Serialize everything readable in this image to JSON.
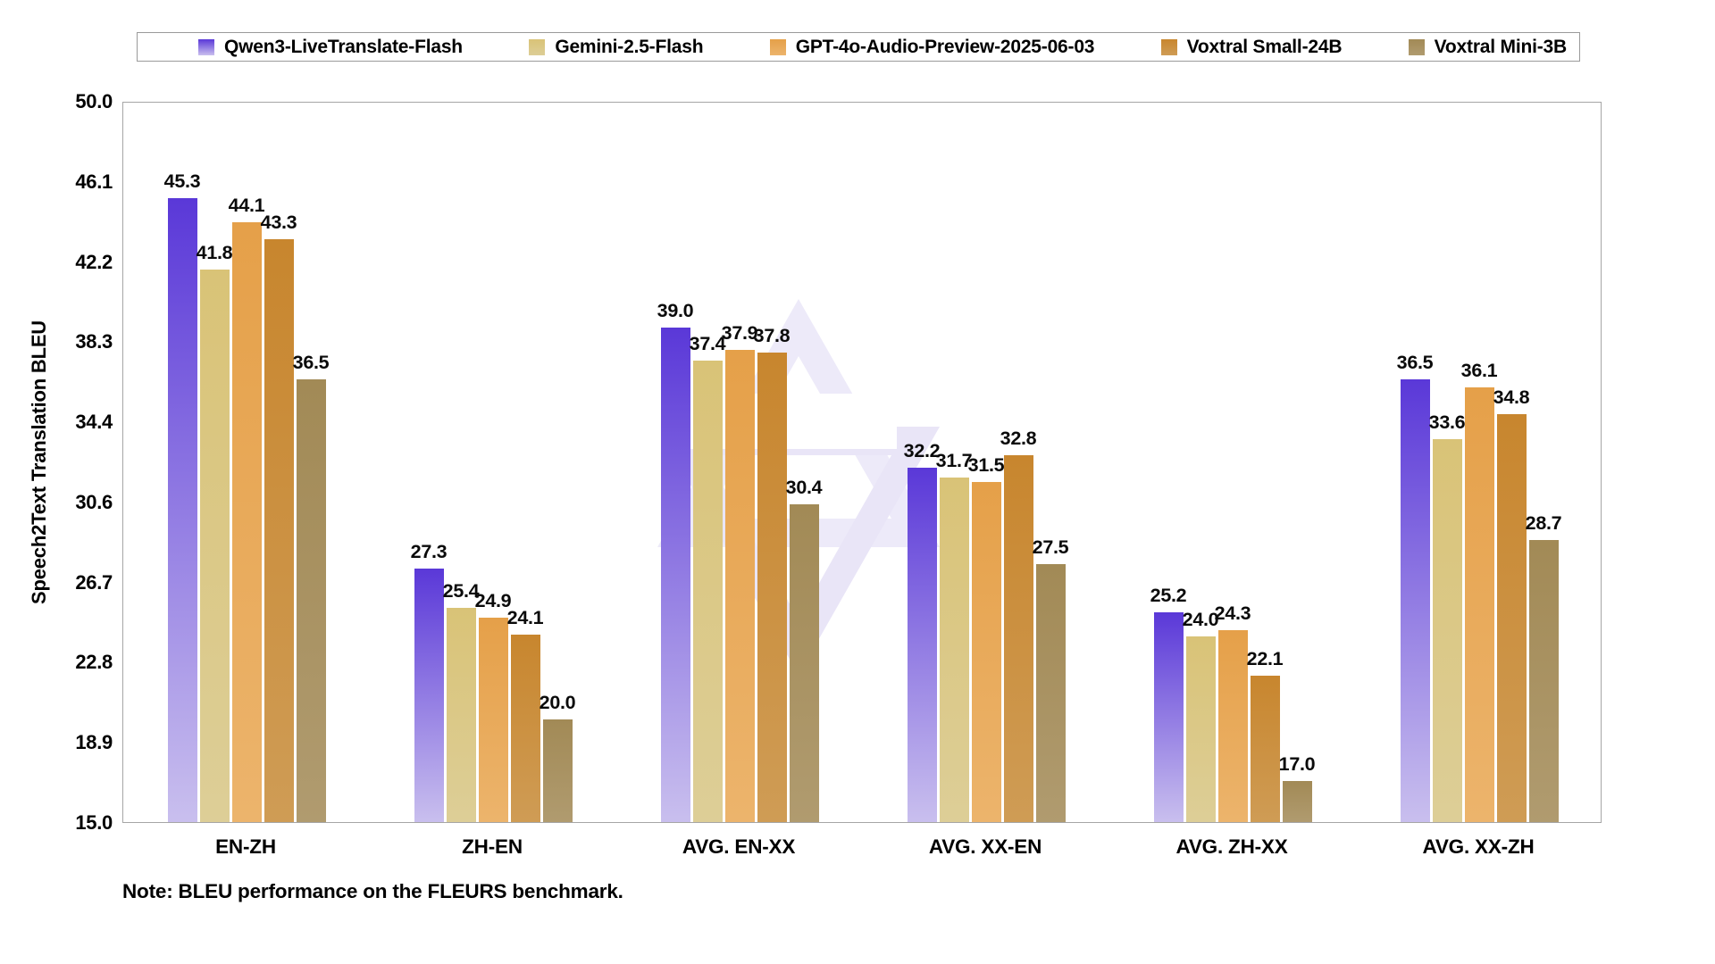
{
  "note": "Note: BLEU performance on the FLEURS benchmark.",
  "watermark": {
    "icon": "qwen-logo",
    "fill": "#edeaf9",
    "fill2": "#e9e5f7"
  },
  "axis_color": "#a6a6a6",
  "chart_data": {
    "type": "bar",
    "title": "",
    "xlabel": "",
    "ylabel": "Speech2Text Translation BLEU",
    "ylim": [
      15.0,
      50.0
    ],
    "yticks": [
      50.0,
      46.1,
      42.2,
      38.3,
      34.4,
      30.6,
      26.7,
      22.8,
      18.9,
      15.0
    ],
    "grid": false,
    "legend_position": "top",
    "value_labels": true,
    "categories": [
      "EN-ZH",
      "ZH-EN",
      "AVG. EN-XX",
      "AVG. XX-EN",
      "AVG. ZH-XX",
      "AVG. XX-ZH"
    ],
    "series": [
      {
        "name": "Qwen3-LiveTranslate-Flash",
        "color_top": "#5a38d8",
        "color_bottom": "#c9bfee",
        "values": [
          45.3,
          27.3,
          39.0,
          32.2,
          25.2,
          36.5
        ]
      },
      {
        "name": "Gemini-2.5-Flash",
        "color_top": "#d9c377",
        "color_bottom": "#ddce97",
        "values": [
          41.8,
          25.4,
          37.4,
          31.7,
          24.0,
          33.6
        ]
      },
      {
        "name": "GPT-4o-Audio-Preview-2025-06-03",
        "color_top": "#e5a049",
        "color_bottom": "#ecb46c",
        "values": [
          44.1,
          24.9,
          37.9,
          31.5,
          24.3,
          36.1
        ]
      },
      {
        "name": "Voxtral Small-24B",
        "color_top": "#c8862e",
        "color_bottom": "#cf9c55",
        "values": [
          43.3,
          24.1,
          37.8,
          32.8,
          22.1,
          34.8
        ]
      },
      {
        "name": "Voxtral Mini-3B",
        "color_top": "#a28a56",
        "color_bottom": "#b09b6f",
        "values": [
          36.5,
          20.0,
          30.4,
          27.5,
          17.0,
          28.7
        ]
      }
    ]
  }
}
